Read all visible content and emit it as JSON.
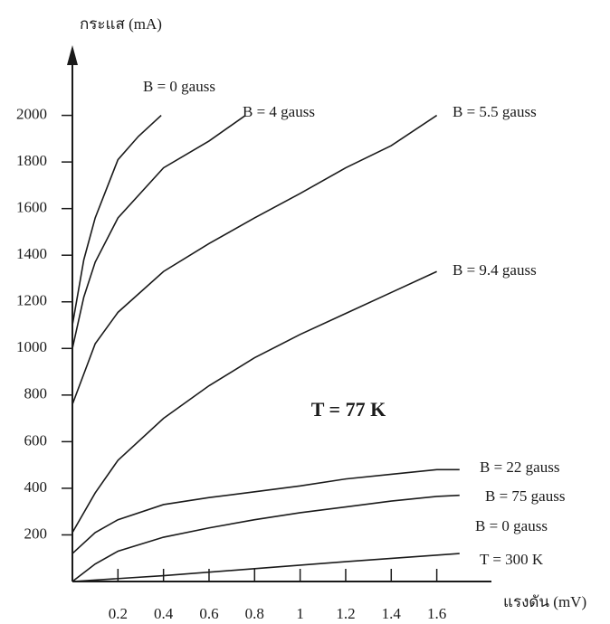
{
  "chart_data": {
    "type": "line",
    "y_label": "กระแส (mA)",
    "x_label": "แรงดัน (mV)",
    "annotation": "T = 77 K",
    "color": "#1a1a1a",
    "xlim": [
      0,
      1.84
    ],
    "ylim": [
      0,
      2270
    ],
    "xticks": [
      0.2,
      0.4,
      0.6,
      0.8,
      1.0,
      1.2,
      1.4,
      1.6
    ],
    "yticks": [
      200,
      400,
      600,
      800,
      1000,
      1200,
      1400,
      1600,
      1800,
      2000
    ],
    "series": [
      {
        "name": "B = 0 gauss",
        "x": [
          0,
          0.05,
          0.1,
          0.2,
          0.29,
          0.39
        ],
        "values": [
          1100,
          1380,
          1560,
          1810,
          1910,
          2000
        ]
      },
      {
        "name": "B = 4 gauss",
        "x": [
          0,
          0.05,
          0.1,
          0.2,
          0.4,
          0.6,
          0.76
        ],
        "values": [
          1000,
          1220,
          1370,
          1560,
          1775,
          1890,
          2000
        ]
      },
      {
        "name": "B = 5.5 gauss",
        "x": [
          0,
          0.1,
          0.2,
          0.4,
          0.6,
          0.8,
          1.0,
          1.2,
          1.4,
          1.6
        ],
        "values": [
          760,
          1020,
          1155,
          1330,
          1450,
          1560,
          1665,
          1775,
          1870,
          2000
        ]
      },
      {
        "name": "B = 9.4 gauss",
        "x": [
          0,
          0.1,
          0.2,
          0.4,
          0.6,
          0.8,
          1.0,
          1.2,
          1.4,
          1.6
        ],
        "values": [
          210,
          380,
          520,
          700,
          840,
          960,
          1060,
          1150,
          1240,
          1330
        ]
      },
      {
        "name": "B = 22 gauss",
        "x": [
          0,
          0.1,
          0.2,
          0.4,
          0.6,
          0.8,
          1.0,
          1.2,
          1.4,
          1.6,
          1.7
        ],
        "values": [
          120,
          210,
          265,
          330,
          360,
          385,
          410,
          440,
          460,
          480,
          480
        ]
      },
      {
        "name": "B = 75 gauss",
        "x": [
          0,
          0.1,
          0.2,
          0.4,
          0.6,
          0.8,
          1.0,
          1.2,
          1.4,
          1.6,
          1.7
        ],
        "values": [
          0,
          75,
          130,
          190,
          230,
          265,
          295,
          320,
          345,
          365,
          370
        ]
      },
      {
        "name": "B = 0 gauss",
        "x": [
          0,
          0.4,
          0.8,
          1.2,
          1.7
        ],
        "values": [
          0,
          25,
          55,
          85,
          120
        ]
      },
      {
        "name": "T = 300 K"
      }
    ]
  }
}
